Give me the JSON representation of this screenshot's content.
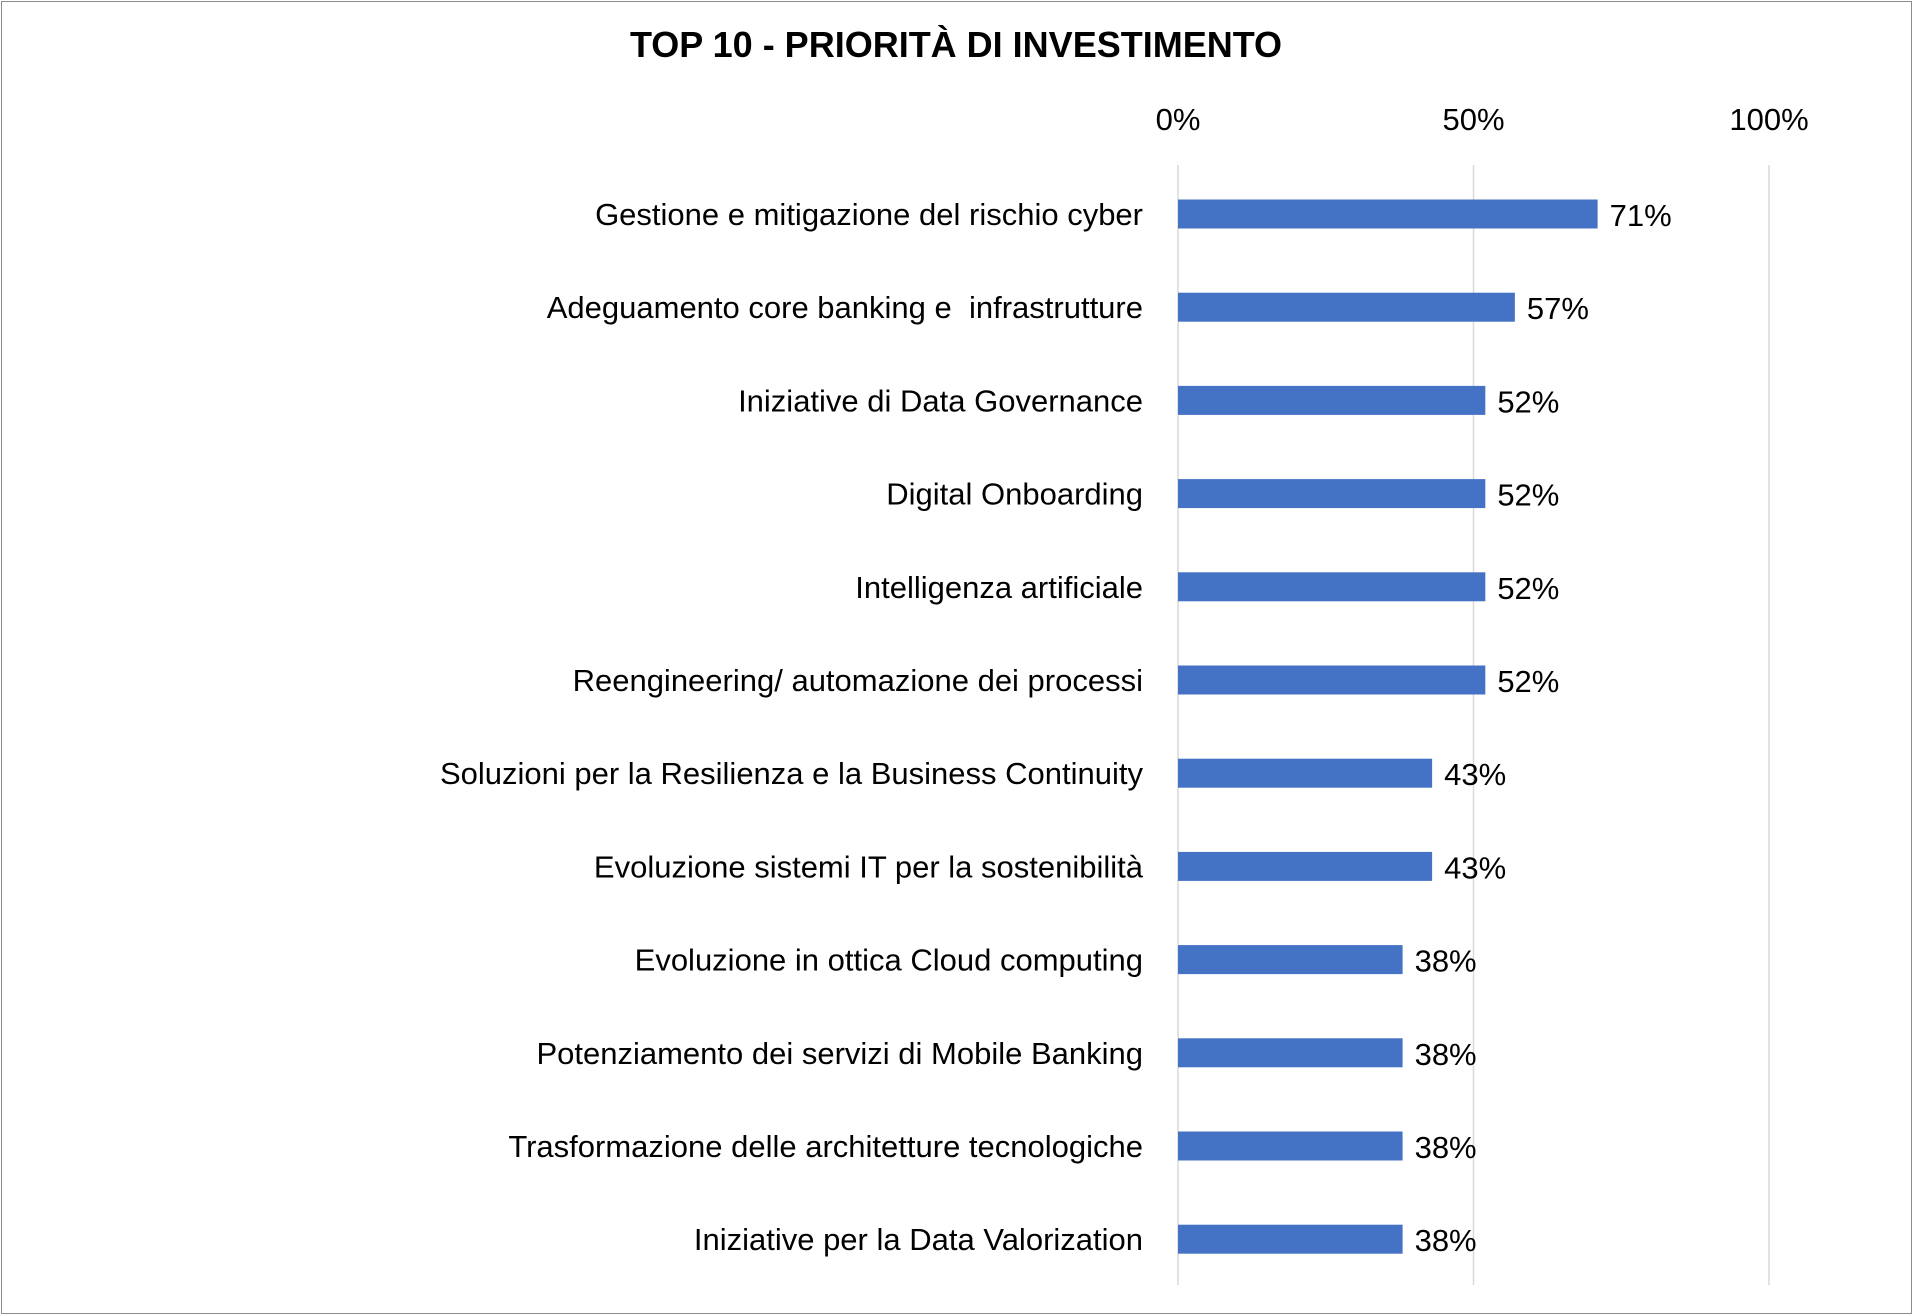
{
  "chart_data": {
    "type": "bar",
    "orientation": "horizontal",
    "title": "TOP 10 - PRIORITÀ DI INVESTIMENTO",
    "xlim": [
      0,
      100
    ],
    "x_ticks": [
      0,
      50,
      100
    ],
    "x_tick_labels": [
      "0%",
      "50%",
      "100%"
    ],
    "axis_position": "top",
    "grid": true,
    "legend": "none",
    "bar_color": "#4472C4",
    "categories": [
      "Gestione e mitigazione del rischio cyber",
      "Adeguamento core banking e  infrastrutture",
      "Iniziative di Data Governance",
      "Digital Onboarding",
      "Intelligenza artificiale",
      "Reengineering/ automazione dei processi",
      "Soluzioni per la Resilienza e la Business Continuity",
      "Evoluzione sistemi IT per la sostenibilità",
      "Evoluzione in ottica Cloud computing",
      "Potenziamento dei servizi di Mobile Banking",
      "Trasformazione delle architetture tecnologiche",
      "Iniziative per la Data Valorization"
    ],
    "values": [
      71,
      57,
      52,
      52,
      52,
      52,
      43,
      43,
      38,
      38,
      38,
      38
    ],
    "value_labels": [
      "71%",
      "57%",
      "52%",
      "52%",
      "52%",
      "52%",
      "43%",
      "43%",
      "38%",
      "38%",
      "38%",
      "38%"
    ]
  }
}
